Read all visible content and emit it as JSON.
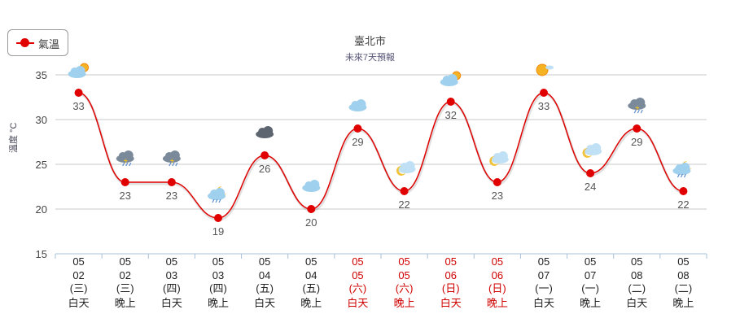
{
  "legend": {
    "label": "氣溫"
  },
  "chart_data": {
    "type": "line",
    "title": "臺北市",
    "subtitle": "未來7天預報",
    "ylabel": "溫度 °C",
    "ylim": [
      15,
      35
    ],
    "yticks": [
      15,
      20,
      25,
      30,
      35
    ],
    "grid": true,
    "legend_position": "top-left",
    "line_color": "#e00000",
    "weekend_color": "#d00000",
    "categories": [
      {
        "month": "05",
        "day": "02",
        "weekday": "(三)",
        "period": "白天",
        "weekend": false,
        "icon": "sunny-cloudy-icon"
      },
      {
        "month": "05",
        "day": "02",
        "weekday": "(三)",
        "period": "晚上",
        "weekend": false,
        "icon": "thunder-rain-icon"
      },
      {
        "month": "05",
        "day": "03",
        "weekday": "(四)",
        "period": "白天",
        "weekend": false,
        "icon": "thunder-rain-icon"
      },
      {
        "month": "05",
        "day": "03",
        "weekday": "(四)",
        "period": "晚上",
        "weekend": false,
        "icon": "night-rain-icon"
      },
      {
        "month": "05",
        "day": "04",
        "weekday": "(五)",
        "period": "白天",
        "weekend": false,
        "icon": "dark-cloud-icon"
      },
      {
        "month": "05",
        "day": "04",
        "weekday": "(五)",
        "period": "晚上",
        "weekend": false,
        "icon": "cloud-icon"
      },
      {
        "month": "05",
        "day": "05",
        "weekday": "(六)",
        "period": "白天",
        "weekend": true,
        "icon": "cloud-icon"
      },
      {
        "month": "05",
        "day": "05",
        "weekday": "(六)",
        "period": "晚上",
        "weekend": true,
        "icon": "moon-cloud-icon"
      },
      {
        "month": "05",
        "day": "06",
        "weekday": "(日)",
        "period": "白天",
        "weekend": true,
        "icon": "sunny-cloudy-icon"
      },
      {
        "month": "05",
        "day": "06",
        "weekday": "(日)",
        "period": "晚上",
        "weekend": true,
        "icon": "moon-cloud-icon"
      },
      {
        "month": "05",
        "day": "07",
        "weekday": "(一)",
        "period": "白天",
        "weekend": false,
        "icon": "sunny-icon"
      },
      {
        "month": "05",
        "day": "07",
        "weekday": "(一)",
        "period": "晚上",
        "weekend": false,
        "icon": "moon-cloud-icon"
      },
      {
        "month": "05",
        "day": "08",
        "weekday": "(二)",
        "period": "白天",
        "weekend": false,
        "icon": "thunder-rain-icon"
      },
      {
        "month": "05",
        "day": "08",
        "weekday": "(二)",
        "period": "晚上",
        "weekend": false,
        "icon": "night-rain-icon"
      }
    ],
    "series": [
      {
        "name": "氣溫",
        "values": [
          33,
          23,
          23,
          19,
          26,
          20,
          29,
          22,
          32,
          23,
          33,
          24,
          29,
          22
        ]
      }
    ]
  }
}
